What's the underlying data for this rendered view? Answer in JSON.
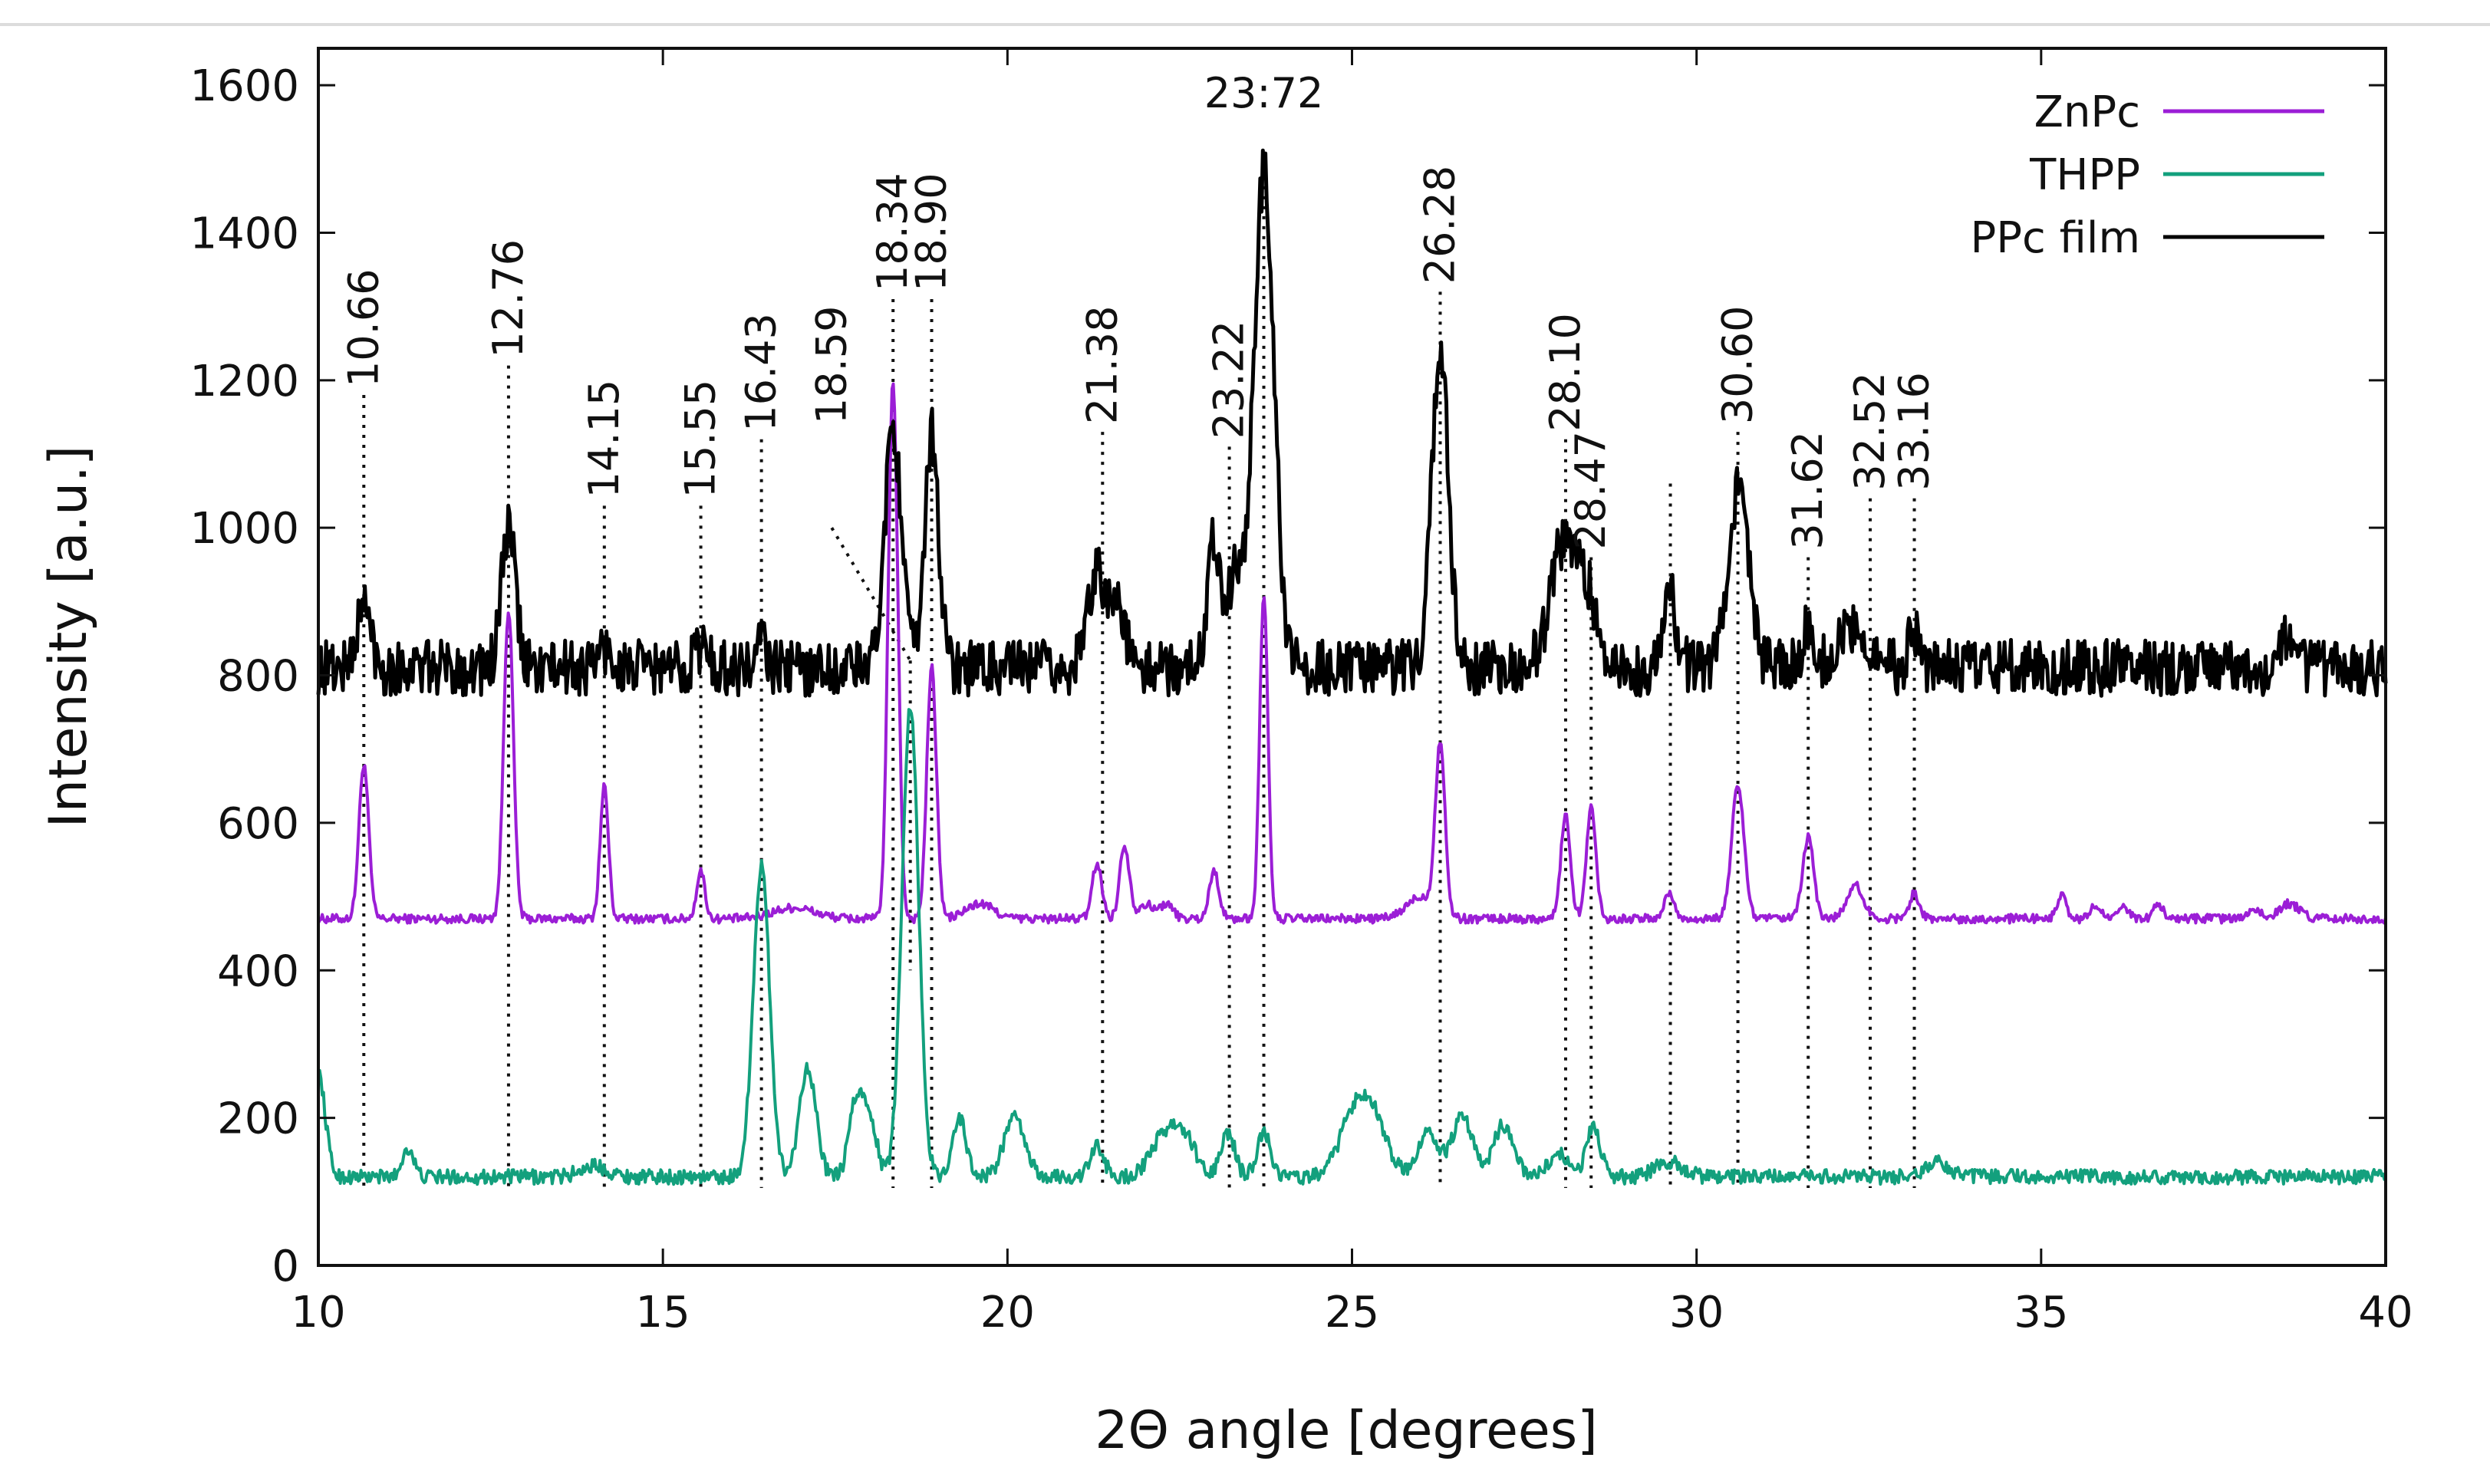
{
  "chart_data": {
    "type": "line",
    "title": "",
    "xlabel": "2Θ angle [degrees]",
    "ylabel": "Intensity [a.u.]",
    "xlim": [
      10,
      40
    ],
    "ylim": [
      0,
      1650
    ],
    "xticks": [
      10,
      15,
      20,
      25,
      30,
      35,
      40
    ],
    "yticks": [
      0,
      200,
      400,
      600,
      800,
      1000,
      1200,
      1400,
      1600
    ],
    "legend_position": "top-right",
    "series": [
      {
        "name": "ZnPc",
        "color": "#9b1ed6",
        "baseline": 470,
        "peaks": [
          [
            10.66,
            210,
            0.07
          ],
          [
            12.76,
            420,
            0.07
          ],
          [
            14.15,
            180,
            0.06
          ],
          [
            15.55,
            65,
            0.06
          ],
          [
            16.9,
            15,
            0.3
          ],
          [
            18.34,
            730,
            0.07
          ],
          [
            18.9,
            340,
            0.07
          ],
          [
            19.6,
            20,
            0.2
          ],
          [
            21.3,
            75,
            0.07
          ],
          [
            21.7,
            100,
            0.07
          ],
          [
            22.0,
            20,
            0.1
          ],
          [
            22.3,
            20,
            0.1
          ],
          [
            23.0,
            65,
            0.07
          ],
          [
            23.72,
            440,
            0.06
          ],
          [
            26.28,
            230,
            0.07
          ],
          [
            26.0,
            30,
            0.2
          ],
          [
            28.1,
            140,
            0.07
          ],
          [
            28.47,
            150,
            0.07
          ],
          [
            29.6,
            35,
            0.07
          ],
          [
            30.6,
            180,
            0.09
          ],
          [
            31.62,
            110,
            0.08
          ],
          [
            32.3,
            45,
            0.12
          ],
          [
            33.16,
            35,
            0.07
          ],
          [
            35.3,
            30,
            0.07
          ],
          [
            35.8,
            20,
            0.07
          ],
          [
            36.2,
            15,
            0.07
          ],
          [
            36.7,
            20,
            0.07
          ],
          [
            38.1,
            15,
            0.07
          ],
          [
            38.6,
            20,
            0.15
          ]
        ]
      },
      {
        "name": "THPP",
        "color": "#13a07d",
        "baseline": 120,
        "peaks": [
          [
            10.0,
            140,
            0.1
          ],
          [
            11.3,
            40,
            0.08
          ],
          [
            14.0,
            15,
            0.2
          ],
          [
            16.43,
            420,
            0.12
          ],
          [
            17.1,
            150,
            0.12
          ],
          [
            17.8,
            100,
            0.1
          ],
          [
            18.0,
            80,
            0.1
          ],
          [
            18.59,
            640,
            0.12
          ],
          [
            19.3,
            80,
            0.1
          ],
          [
            20.1,
            80,
            0.15
          ],
          [
            21.3,
            40,
            0.1
          ],
          [
            22.3,
            60,
            0.2
          ],
          [
            22.6,
            40,
            0.15
          ],
          [
            23.2,
            60,
            0.1
          ],
          [
            23.72,
            60,
            0.1
          ],
          [
            25.0,
            70,
            0.2
          ],
          [
            25.3,
            80,
            0.2
          ],
          [
            26.1,
            60,
            0.15
          ],
          [
            26.6,
            80,
            0.15
          ],
          [
            27.2,
            70,
            0.15
          ],
          [
            28.0,
            30,
            0.15
          ],
          [
            28.5,
            70,
            0.1
          ],
          [
            29.6,
            20,
            0.2
          ],
          [
            33.5,
            20,
            0.15
          ]
        ]
      },
      {
        "name": "PPc film",
        "color": "#000000",
        "baseline": 810,
        "peaks": [
          [
            10.66,
            85,
            0.1
          ],
          [
            12.76,
            190,
            0.1
          ],
          [
            14.15,
            25,
            0.1
          ],
          [
            15.55,
            30,
            0.1
          ],
          [
            16.43,
            40,
            0.06
          ],
          [
            18.34,
            330,
            0.12
          ],
          [
            18.9,
            320,
            0.1
          ],
          [
            21.3,
            140,
            0.12
          ],
          [
            21.6,
            90,
            0.1
          ],
          [
            23.0,
            180,
            0.1
          ],
          [
            23.3,
            120,
            0.1
          ],
          [
            23.72,
            670,
            0.15
          ],
          [
            26.28,
            440,
            0.12
          ],
          [
            28.1,
            180,
            0.2
          ],
          [
            28.47,
            70,
            0.12
          ],
          [
            29.6,
            100,
            0.1
          ],
          [
            30.6,
            240,
            0.15
          ],
          [
            31.62,
            50,
            0.1
          ],
          [
            32.3,
            60,
            0.2
          ],
          [
            33.16,
            50,
            0.08
          ],
          [
            38.6,
            40,
            0.1
          ]
        ]
      }
    ],
    "reference_lines": [
      {
        "x": 10.66,
        "label": "10.66",
        "label_y": 1260
      },
      {
        "x": 12.76,
        "label": "12.76",
        "label_y": 1300
      },
      {
        "x": 14.15,
        "label": "14.15",
        "label_y": 1110
      },
      {
        "x": 15.55,
        "label": "15.55",
        "label_y": 1110
      },
      {
        "x": 16.43,
        "label": "16.43",
        "label_y": 1200
      },
      {
        "x": 18.34,
        "label": "18.34",
        "label_y": 1390
      },
      {
        "x": 18.59,
        "label": "18.59",
        "label_y": 1210
      },
      {
        "x": 18.9,
        "label": "18.90",
        "label_y": 1390
      },
      {
        "x": 21.38,
        "label": "21.38",
        "label_y": 1210
      },
      {
        "x": 23.22,
        "label": "23.22",
        "label_y": 1190
      },
      {
        "x": 23.72,
        "label": "23:72",
        "label_y": 1570
      },
      {
        "x": 26.28,
        "label": "26.28",
        "label_y": 1400
      },
      {
        "x": 28.1,
        "label": "28.10",
        "label_y": 1200
      },
      {
        "x": 28.47,
        "label": "28.47",
        "label_y": 1040
      },
      {
        "x": 29.62,
        "label": "",
        "label_y": 1060
      },
      {
        "x": 30.6,
        "label": "30.60",
        "label_y": 1210
      },
      {
        "x": 31.62,
        "label": "31.62",
        "label_y": 1040
      },
      {
        "x": 32.52,
        "label": "32.52",
        "label_y": 1120
      },
      {
        "x": 33.16,
        "label": "33.16",
        "label_y": 1120
      }
    ]
  }
}
